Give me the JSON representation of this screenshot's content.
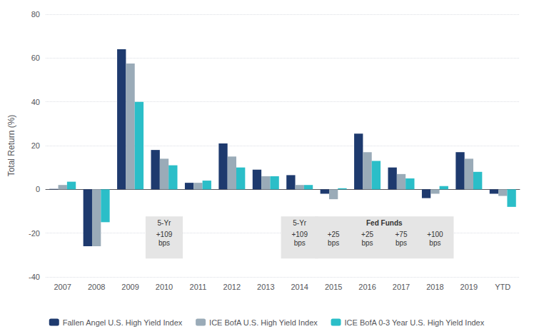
{
  "chart_data": {
    "type": "bar",
    "categories": [
      "2007",
      "2008",
      "2009",
      "2010",
      "2011",
      "2012",
      "2013",
      "2014",
      "2015",
      "2016",
      "2017",
      "2018",
      "2019",
      "YTD"
    ],
    "series": [
      {
        "name": "Fallen Angel U.S. High Yield Index",
        "color": "#1e3a6e",
        "values": [
          0.2,
          -26.0,
          64.0,
          18.0,
          3.0,
          21.0,
          9.0,
          6.5,
          -2.0,
          25.5,
          10.0,
          -4.0,
          17.0,
          -2.0
        ]
      },
      {
        "name": "ICE BofA U.S. High Yield Index",
        "color": "#9aabb8",
        "values": [
          2.0,
          -26.0,
          57.5,
          14.0,
          3.0,
          15.0,
          6.0,
          2.0,
          -4.5,
          17.0,
          7.0,
          -2.0,
          14.0,
          -3.0
        ]
      },
      {
        "name": "ICE BofA 0-3 Year U.S. High Yield Index",
        "color": "#2bbec8",
        "values": [
          3.5,
          -15.0,
          40.0,
          11.0,
          4.0,
          10.0,
          6.0,
          2.0,
          0.5,
          13.0,
          5.0,
          1.5,
          8.0,
          -8.0
        ]
      }
    ],
    "ylabel": "Total Return (%)",
    "ylim": [
      -40,
      80
    ],
    "yticks": [
      -40,
      -20,
      0,
      20,
      40,
      60,
      80
    ],
    "grid": true,
    "legend": "bottom",
    "annotations": [
      {
        "title": "5-Yr",
        "categories": [
          "2010"
        ],
        "labels": [
          "+109\nbps"
        ]
      },
      {
        "title": "5-Yr",
        "categories": [
          "2014"
        ],
        "labels": [
          "+109\nbps"
        ]
      },
      {
        "title": "Fed Funds",
        "categories": [
          "2015",
          "2016",
          "2017",
          "2018"
        ],
        "labels": [
          "+25\nbps",
          "+25\nbps",
          "+75\nbps",
          "+100\nbps"
        ]
      }
    ]
  }
}
